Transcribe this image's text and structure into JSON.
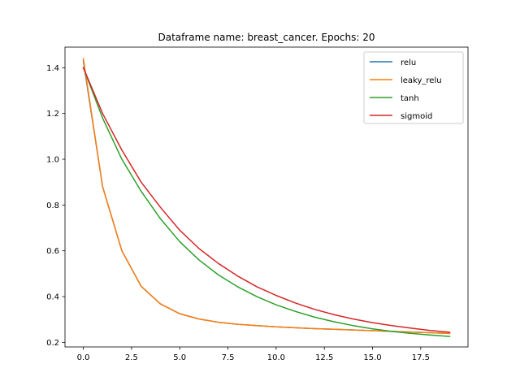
{
  "chart_data": {
    "type": "line",
    "title": "Dataframe name: breast_cancer. Epochs: 20",
    "xlabel": "",
    "ylabel": "",
    "xlim": [
      -0.95,
      19.95
    ],
    "ylim": [
      0.18,
      1.49
    ],
    "xticks": [
      0.0,
      2.5,
      5.0,
      7.5,
      10.0,
      12.5,
      15.0,
      17.5
    ],
    "xtick_labels": [
      "0.0",
      "2.5",
      "5.0",
      "7.5",
      "10.0",
      "12.5",
      "15.0",
      "17.5"
    ],
    "yticks": [
      0.2,
      0.4,
      0.6,
      0.8,
      1.0,
      1.2,
      1.4
    ],
    "ytick_labels": [
      "0.2",
      "0.4",
      "0.6",
      "0.8",
      "1.0",
      "1.2",
      "1.4"
    ],
    "grid": false,
    "legend_position": "top-right",
    "x": [
      0,
      1,
      2,
      3,
      4,
      5,
      6,
      7,
      8,
      9,
      10,
      11,
      12,
      13,
      14,
      15,
      16,
      17,
      18,
      19
    ],
    "series": [
      {
        "name": "relu",
        "color": "#1f77b4",
        "values": [
          1.43,
          0.88,
          0.6,
          0.445,
          0.368,
          0.325,
          0.302,
          0.288,
          0.279,
          0.273,
          0.268,
          0.264,
          0.26,
          0.257,
          0.254,
          0.251,
          0.248,
          0.245,
          0.242,
          0.239
        ]
      },
      {
        "name": "leaky_relu",
        "color": "#ff7f0e",
        "values": [
          1.44,
          0.88,
          0.6,
          0.445,
          0.368,
          0.325,
          0.302,
          0.288,
          0.279,
          0.273,
          0.268,
          0.264,
          0.26,
          0.257,
          0.254,
          0.251,
          0.248,
          0.245,
          0.242,
          0.239
        ]
      },
      {
        "name": "tanh",
        "color": "#2ca02c",
        "values": [
          1.4,
          1.18,
          1.0,
          0.86,
          0.74,
          0.64,
          0.56,
          0.495,
          0.443,
          0.4,
          0.364,
          0.335,
          0.31,
          0.29,
          0.273,
          0.259,
          0.248,
          0.239,
          0.232,
          0.226
        ]
      },
      {
        "name": "sigmoid",
        "color": "#d62728",
        "values": [
          1.4,
          1.2,
          1.04,
          0.9,
          0.79,
          0.69,
          0.61,
          0.545,
          0.49,
          0.443,
          0.405,
          0.372,
          0.344,
          0.321,
          0.302,
          0.286,
          0.273,
          0.262,
          0.252,
          0.244
        ]
      }
    ]
  }
}
